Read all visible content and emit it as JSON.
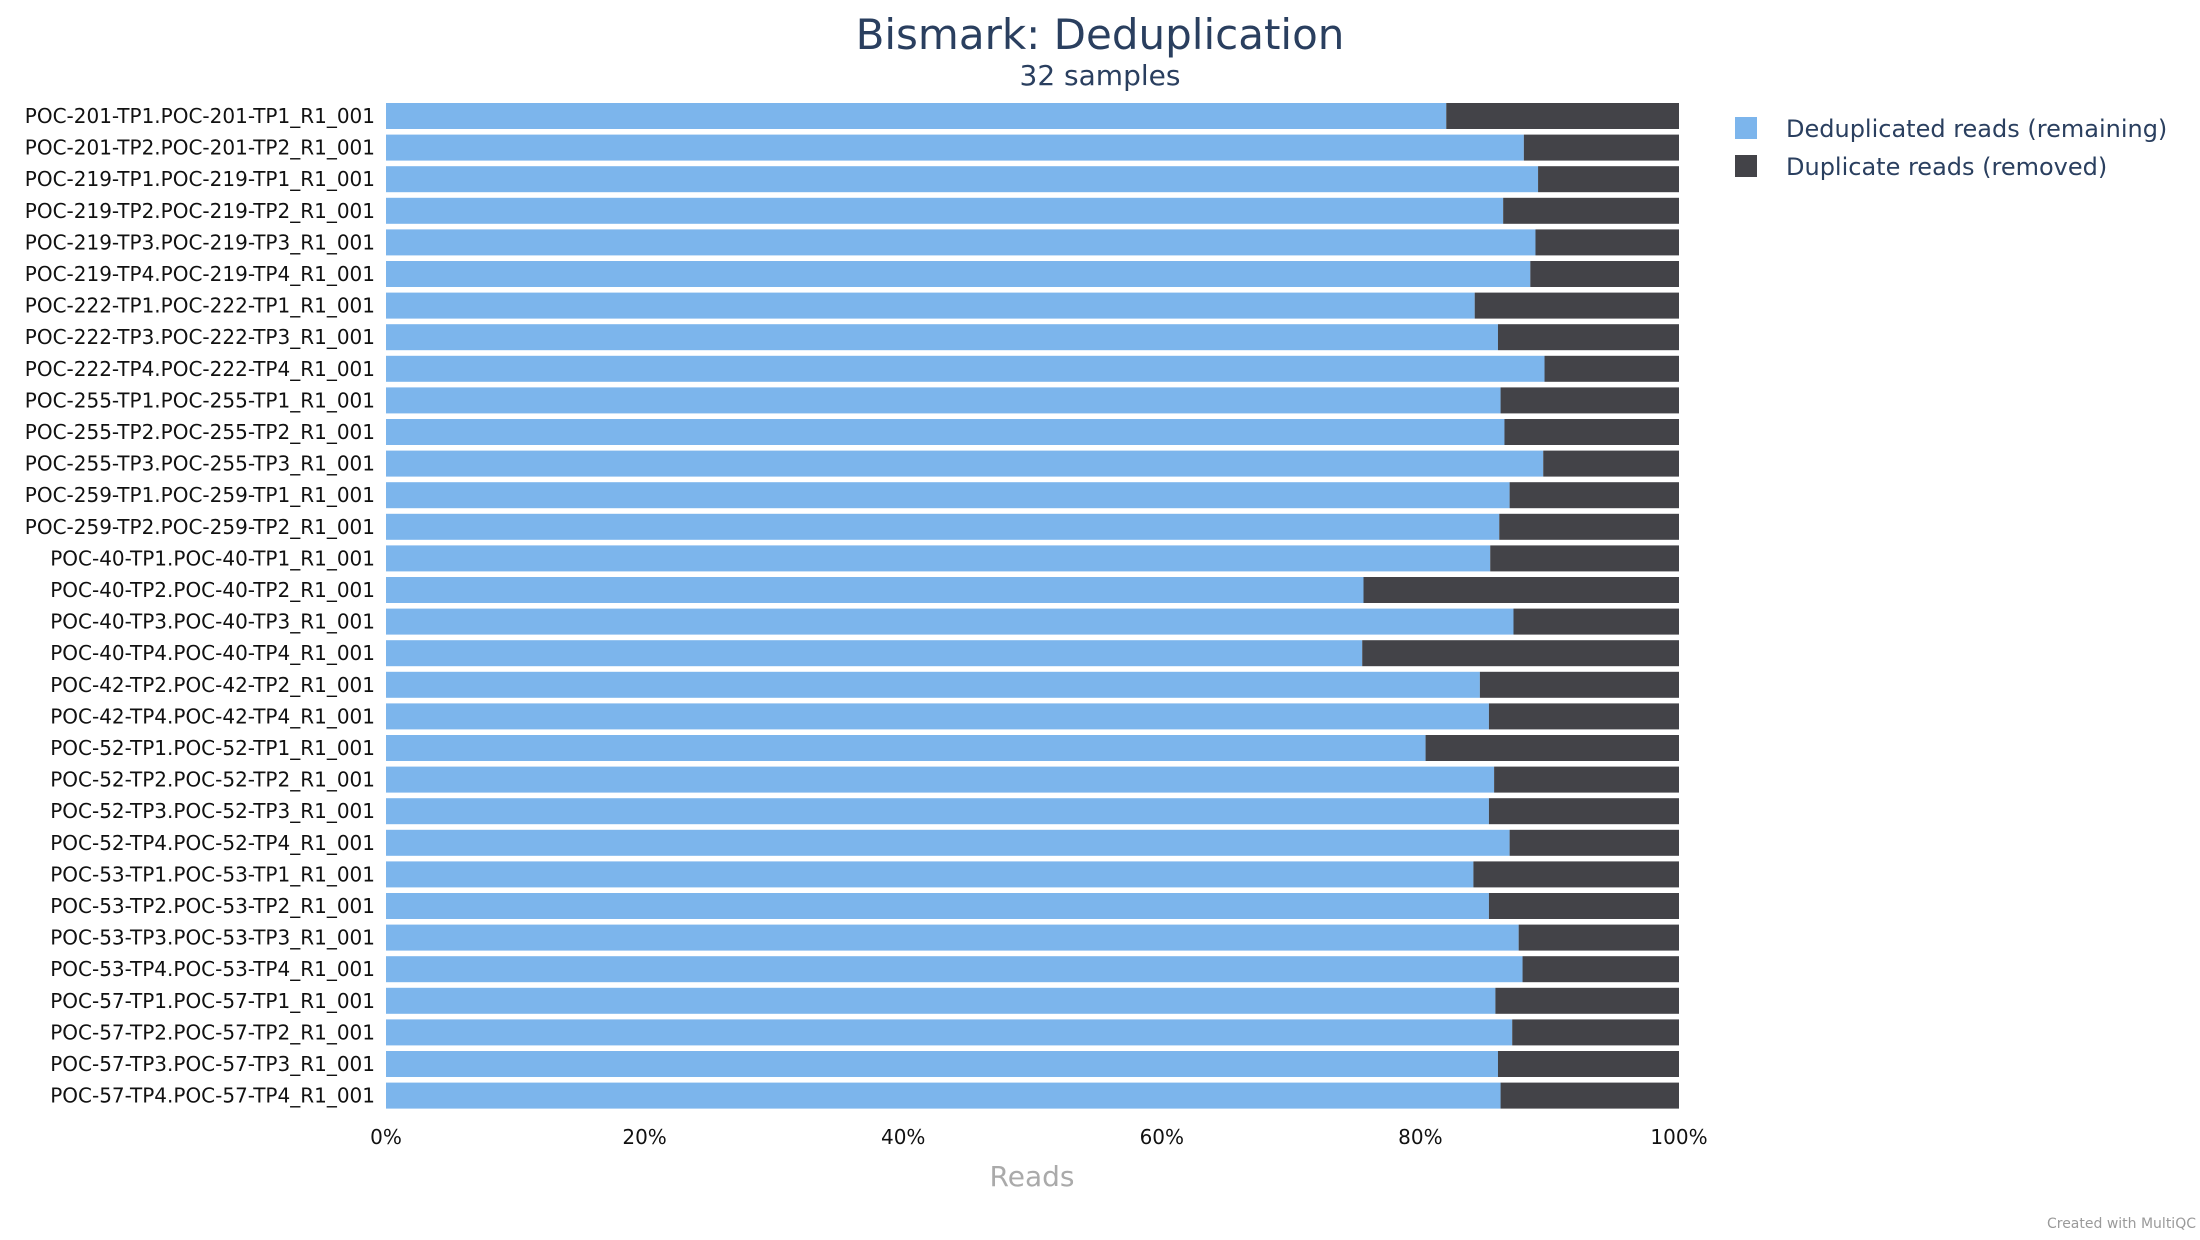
{
  "chart_data": {
    "type": "bar",
    "orientation": "horizontal",
    "stacked": true,
    "normalized_percent": true,
    "title": "Bismark: Deduplication",
    "subtitle": "32 samples",
    "xlabel": "Reads",
    "ylabel": "",
    "xlim": [
      0,
      100
    ],
    "x_ticks": [
      "0%",
      "20%",
      "40%",
      "60%",
      "80%",
      "100%"
    ],
    "grid": false,
    "legend_position": "top-right",
    "categories": [
      "POC-201-TP1.POC-201-TP1_R1_001",
      "POC-201-TP2.POC-201-TP2_R1_001",
      "POC-219-TP1.POC-219-TP1_R1_001",
      "POC-219-TP2.POC-219-TP2_R1_001",
      "POC-219-TP3.POC-219-TP3_R1_001",
      "POC-219-TP4.POC-219-TP4_R1_001",
      "POC-222-TP1.POC-222-TP1_R1_001",
      "POC-222-TP3.POC-222-TP3_R1_001",
      "POC-222-TP4.POC-222-TP4_R1_001",
      "POC-255-TP1.POC-255-TP1_R1_001",
      "POC-255-TP2.POC-255-TP2_R1_001",
      "POC-255-TP3.POC-255-TP3_R1_001",
      "POC-259-TP1.POC-259-TP1_R1_001",
      "POC-259-TP2.POC-259-TP2_R1_001",
      "POC-40-TP1.POC-40-TP1_R1_001",
      "POC-40-TP2.POC-40-TP2_R1_001",
      "POC-40-TP3.POC-40-TP3_R1_001",
      "POC-40-TP4.POC-40-TP4_R1_001",
      "POC-42-TP2.POC-42-TP2_R1_001",
      "POC-42-TP4.POC-42-TP4_R1_001",
      "POC-52-TP1.POC-52-TP1_R1_001",
      "POC-52-TP2.POC-52-TP2_R1_001",
      "POC-52-TP3.POC-52-TP3_R1_001",
      "POC-52-TP4.POC-52-TP4_R1_001",
      "POC-53-TP1.POC-53-TP1_R1_001",
      "POC-53-TP2.POC-53-TP2_R1_001",
      "POC-53-TP3.POC-53-TP3_R1_001",
      "POC-53-TP4.POC-53-TP4_R1_001",
      "POC-57-TP1.POC-57-TP1_R1_001",
      "POC-57-TP2.POC-57-TP2_R1_001",
      "POC-57-TP3.POC-57-TP3_R1_001",
      "POC-57-TP4.POC-57-TP4_R1_001"
    ],
    "series": [
      {
        "name": "Deduplicated reads (remaining)",
        "color": "#7cb5ec",
        "values": [
          82.0,
          88.0,
          89.1,
          86.4,
          88.9,
          88.5,
          84.2,
          86.0,
          89.6,
          86.2,
          86.5,
          89.5,
          86.9,
          86.1,
          85.4,
          75.6,
          87.2,
          75.5,
          84.6,
          85.3,
          80.4,
          85.7,
          85.3,
          86.9,
          84.1,
          85.3,
          87.6,
          87.9,
          85.8,
          87.1,
          86.0,
          86.2
        ]
      },
      {
        "name": "Duplicate reads (removed)",
        "color": "#434348",
        "values": [
          18.0,
          12.0,
          10.9,
          13.6,
          11.1,
          11.5,
          15.8,
          14.0,
          10.4,
          13.8,
          13.5,
          10.5,
          13.1,
          13.9,
          14.6,
          24.4,
          12.8,
          24.5,
          15.4,
          14.7,
          19.6,
          14.3,
          14.7,
          13.1,
          15.9,
          14.7,
          12.4,
          12.1,
          14.2,
          12.9,
          14.0,
          13.8
        ]
      }
    ]
  },
  "footer": {
    "credit": "Created with MultiQC"
  }
}
